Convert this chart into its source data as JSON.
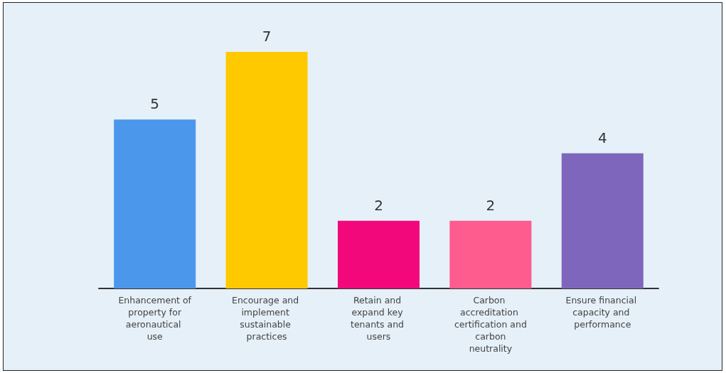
{
  "chart_data": {
    "type": "bar",
    "categories": [
      "Enhancement of property for aeronautical use",
      "Encourage and implement sustainable practices",
      "Retain and expand key tenants and users",
      "Carbon accreditation certification and carbon neutrality",
      "Ensure financial capacity and performance"
    ],
    "values": [
      5,
      7,
      2,
      2,
      4
    ],
    "colors": [
      "#4a97ec",
      "#ffc900",
      "#f2087b",
      "#fe5b8f",
      "#7f66bd"
    ],
    "data_labels": true
  }
}
